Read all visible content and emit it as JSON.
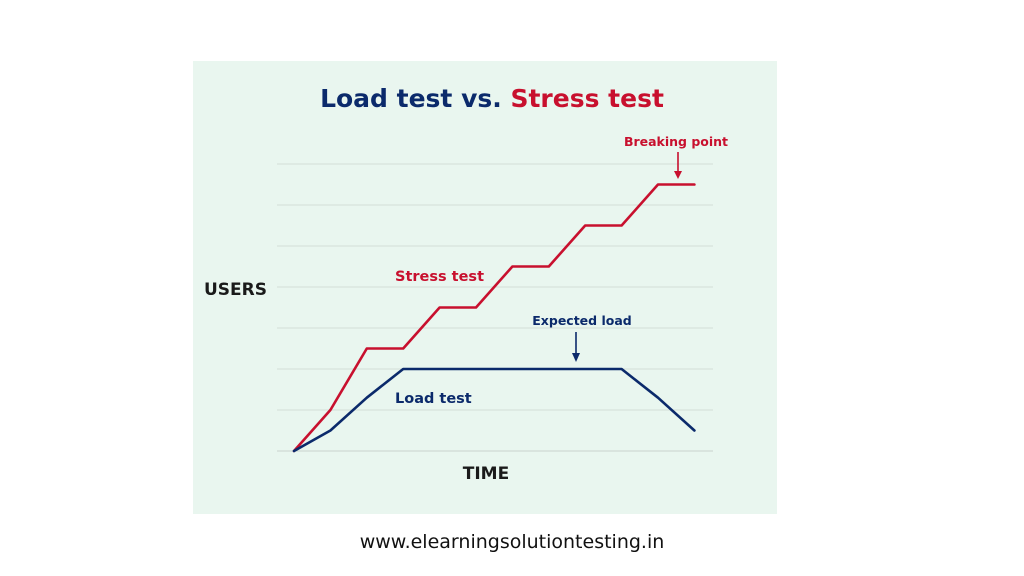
{
  "chart_data": {
    "type": "line",
    "title_parts": [
      {
        "text": "Load test",
        "color": "#0b2a6b"
      },
      {
        "text": " vs. ",
        "color": "#0b2a6b"
      },
      {
        "text": "Stress test",
        "color": "#c8102e"
      }
    ],
    "xlabel": "TIME",
    "ylabel": "USERS",
    "grid": true,
    "xlim": [
      0,
      12
    ],
    "ylim": [
      0,
      7
    ],
    "series": [
      {
        "label": "Stress test",
        "color": "#c8102e",
        "x": [
          0,
          1,
          2,
          3,
          4,
          5,
          6,
          7,
          8,
          9,
          10,
          11
        ],
        "y": [
          0,
          1,
          2.5,
          2.5,
          3.5,
          3.5,
          4.5,
          4.5,
          5.5,
          5.5,
          6.5,
          6.5
        ]
      },
      {
        "label": "Load test",
        "color": "#0b2a6b",
        "x": [
          0,
          1,
          2,
          3,
          4,
          5,
          6,
          7,
          8,
          9,
          10,
          11
        ],
        "y": [
          0,
          0.5,
          1.3,
          2,
          2,
          2,
          2,
          2,
          2,
          2,
          1.3,
          0.5
        ]
      }
    ],
    "annotations": [
      {
        "text": "Breaking point",
        "color": "#c8102e"
      },
      {
        "text": "Expected load",
        "color": "#0b2a6b"
      }
    ]
  },
  "footer": {
    "url": "www.elearningsolutiontesting.in"
  }
}
